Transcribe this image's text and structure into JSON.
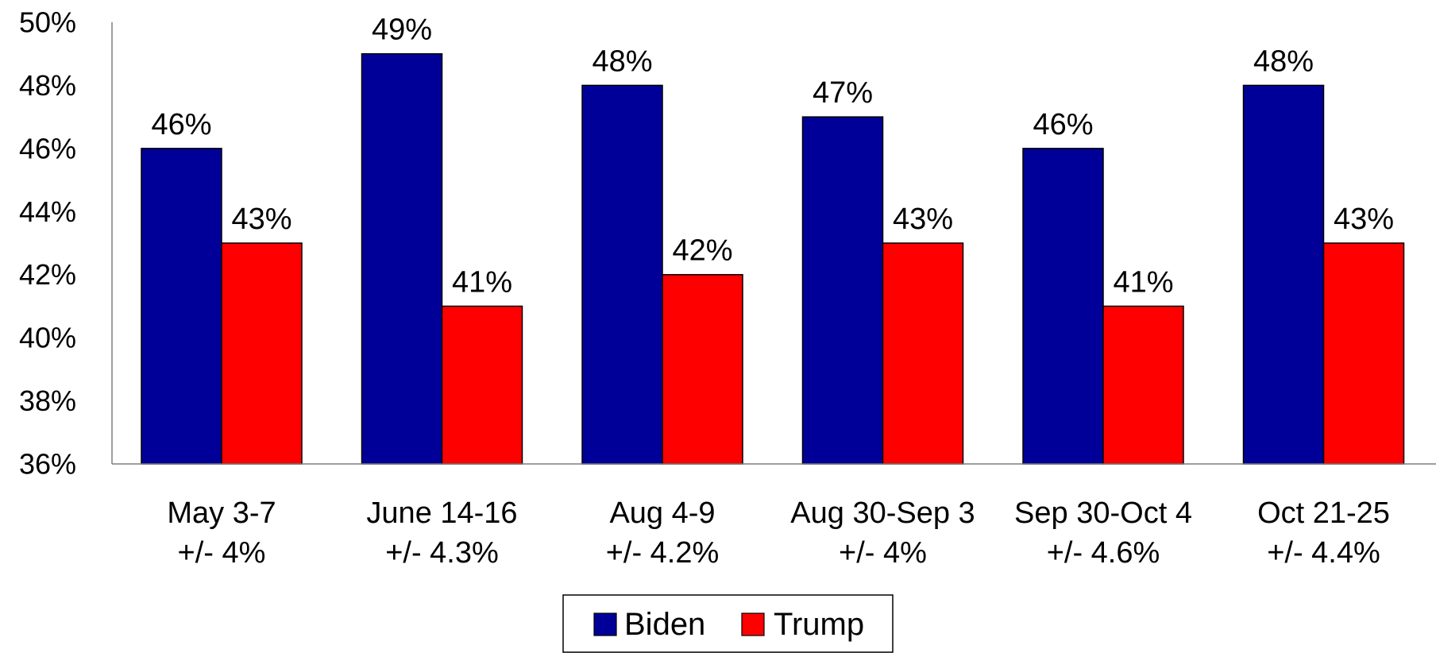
{
  "chart_data": {
    "type": "bar",
    "categories": [
      [
        "May 3-7",
        "+/- 4%"
      ],
      [
        "June 14-16",
        "+/- 4.3%"
      ],
      [
        "Aug 4-9",
        "+/- 4.2%"
      ],
      [
        "Aug 30-Sep 3",
        "+/- 4%"
      ],
      [
        "Sep 30-Oct 4",
        "+/- 4.6%"
      ],
      [
        "Oct 21-25",
        "+/- 4.4%"
      ]
    ],
    "series": [
      {
        "name": "Biden",
        "values": [
          46,
          49,
          48,
          47,
          46,
          48
        ],
        "color": "#000099"
      },
      {
        "name": "Trump",
        "values": [
          43,
          41,
          42,
          43,
          41,
          43
        ],
        "color": "#ff0000"
      }
    ],
    "data_labels": [
      [
        "46%",
        "49%",
        "48%",
        "47%",
        "46%",
        "48%"
      ],
      [
        "43%",
        "41%",
        "42%",
        "43%",
        "41%",
        "43%"
      ]
    ],
    "ylim": [
      36,
      50
    ],
    "yticks": [
      36,
      38,
      40,
      42,
      44,
      46,
      48,
      50
    ],
    "ytick_labels": [
      "36%",
      "38%",
      "40%",
      "42%",
      "44%",
      "46%",
      "48%",
      "50%"
    ],
    "title": "",
    "xlabel": "",
    "ylabel": "",
    "grid": false,
    "legend_position": "bottom"
  }
}
